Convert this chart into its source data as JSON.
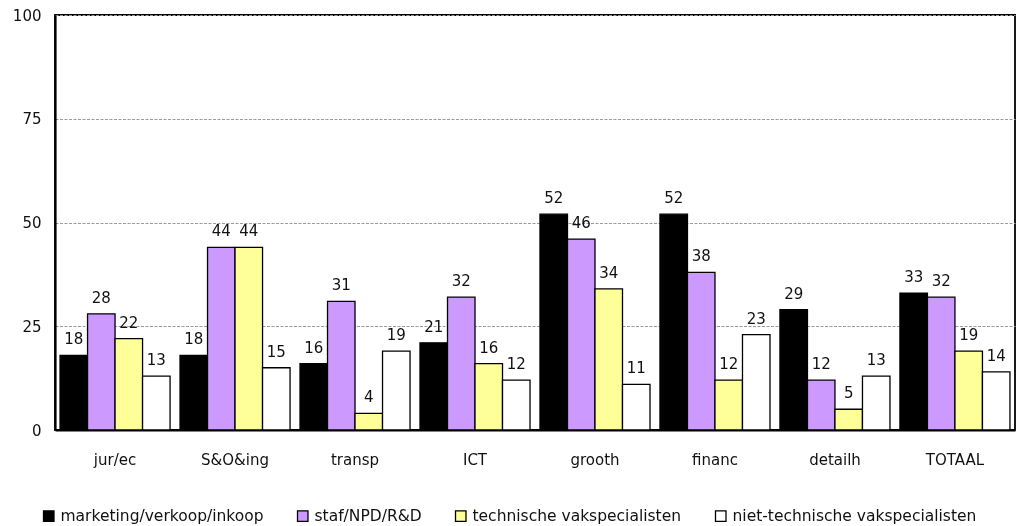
{
  "chart_data": {
    "type": "bar",
    "categories": [
      "jur/ec",
      "S&O&ing",
      "transp",
      "ICT",
      "grooth",
      "financ",
      "detailh",
      "TOTAAL"
    ],
    "series": [
      {
        "name": "marketing/verkoop/inkoop",
        "color": "#000000",
        "values": [
          18,
          18,
          16,
          21,
          52,
          52,
          29,
          33
        ]
      },
      {
        "name": "staf/NPD/R&D",
        "color": "#cc99ff",
        "values": [
          28,
          44,
          31,
          32,
          46,
          38,
          12,
          32
        ]
      },
      {
        "name": "technische vakspecialisten",
        "color": "#ffff99",
        "values": [
          22,
          44,
          4,
          16,
          34,
          12,
          5,
          19
        ]
      },
      {
        "name": "niet-technische vakspecialisten",
        "color": "#ffffff",
        "values": [
          13,
          15,
          19,
          12,
          11,
          23,
          13,
          14
        ]
      }
    ],
    "ylim": [
      0,
      100
    ],
    "yticks": [
      0,
      25,
      50,
      75,
      100
    ],
    "grid": "y",
    "legend": "bottom",
    "data_labels": true
  }
}
